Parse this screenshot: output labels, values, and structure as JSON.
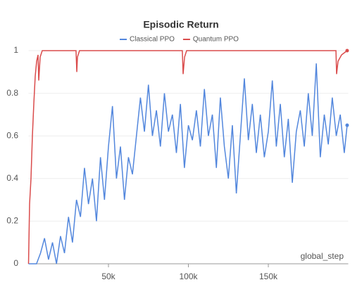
{
  "chart_data": {
    "type": "line",
    "title": "Episodic Return",
    "xlabel": "global_step",
    "xlim": [
      0,
      200000
    ],
    "ylim": [
      0,
      1
    ],
    "xticks": [
      {
        "value": 50000,
        "label": "50k"
      },
      {
        "value": 100000,
        "label": "100k"
      },
      {
        "value": 150000,
        "label": "150k"
      }
    ],
    "yticks": [
      0,
      0.2,
      0.4,
      0.6,
      0.8,
      1
    ],
    "grid": true,
    "legend": "top",
    "series": [
      {
        "name": "Classical PPO",
        "color": "#5387dd",
        "x": [
          0,
          5000,
          7500,
          10000,
          12500,
          15000,
          17500,
          20000,
          22500,
          25000,
          27500,
          30000,
          32500,
          35000,
          37500,
          40000,
          42500,
          45000,
          47500,
          50000,
          52500,
          55000,
          57500,
          60000,
          62500,
          65000,
          67500,
          70000,
          72500,
          75000,
          77500,
          80000,
          82500,
          85000,
          87500,
          90000,
          92500,
          95000,
          97500,
          100000,
          102500,
          105000,
          107500,
          110000,
          112500,
          115000,
          117500,
          120000,
          122500,
          125000,
          127500,
          130000,
          132500,
          135000,
          137500,
          140000,
          142500,
          145000,
          147500,
          150000,
          152500,
          155000,
          157500,
          160000,
          162500,
          165000,
          167500,
          170000,
          172500,
          175000,
          177500,
          180000,
          182500,
          185000,
          187500,
          190000,
          192500,
          195000,
          197500,
          199300
        ],
        "values": [
          0,
          0,
          0.05,
          0.12,
          0.02,
          0.1,
          0,
          0.13,
          0.05,
          0.22,
          0.1,
          0.3,
          0.22,
          0.45,
          0.28,
          0.4,
          0.2,
          0.5,
          0.3,
          0.55,
          0.74,
          0.4,
          0.55,
          0.3,
          0.5,
          0.42,
          0.6,
          0.78,
          0.62,
          0.84,
          0.6,
          0.72,
          0.55,
          0.8,
          0.62,
          0.7,
          0.52,
          0.75,
          0.45,
          0.65,
          0.58,
          0.72,
          0.55,
          0.82,
          0.6,
          0.7,
          0.45,
          0.78,
          0.55,
          0.4,
          0.65,
          0.33,
          0.6,
          0.87,
          0.58,
          0.75,
          0.52,
          0.7,
          0.5,
          0.62,
          0.86,
          0.55,
          0.75,
          0.5,
          0.68,
          0.38,
          0.62,
          0.72,
          0.55,
          0.8,
          0.6,
          0.94,
          0.5,
          0.7,
          0.56,
          0.78,
          0.6,
          0.7,
          0.52,
          0.65
        ]
      },
      {
        "name": "Quantum PPO",
        "color": "#da4c4c",
        "x": [
          0,
          660,
          1540,
          2420,
          3300,
          4190,
          5070,
          5950,
          6390,
          7270,
          8590,
          29700,
          30200,
          30600,
          31900,
          96200,
          96700,
          97600,
          98900,
          192300,
          192700,
          193600,
          195800,
          199300
        ],
        "values": [
          0,
          0.28,
          0.4,
          0.6,
          0.75,
          0.88,
          0.95,
          0.98,
          0.86,
          0.97,
          1,
          1,
          0.9,
          0.97,
          1,
          1,
          0.89,
          0.97,
          1,
          1,
          0.89,
          0.95,
          0.98,
          1
        ]
      }
    ]
  }
}
